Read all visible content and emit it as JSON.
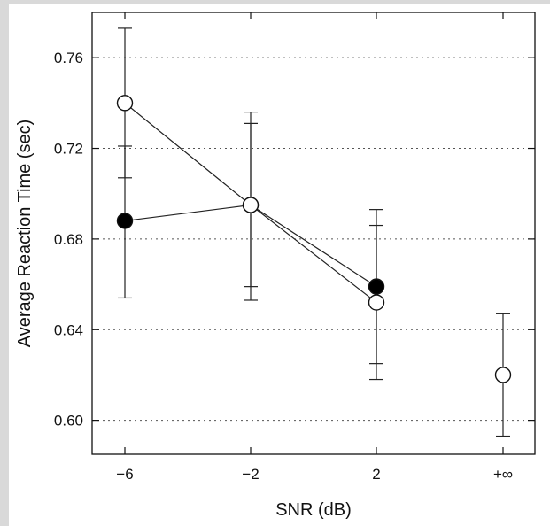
{
  "chart_data": {
    "type": "line",
    "title": "",
    "xlabel": "SNR (dB)",
    "ylabel": "Average Reaction Time (sec)",
    "categories": [
      "−6",
      "−2",
      "2",
      "+∞"
    ],
    "ylim": [
      0.585,
      0.78
    ],
    "yticks": [
      0.6,
      0.64,
      0.68,
      0.72,
      0.76
    ],
    "ytick_labels": [
      "0.60",
      "0.64",
      "0.68",
      "0.72",
      "0.76"
    ],
    "grid": "horizontal dotted",
    "legend": "none",
    "series": [
      {
        "marker": "filled-circle",
        "color": "#000000",
        "values": [
          0.688,
          0.695,
          0.659,
          null
        ],
        "err_low": [
          0.654,
          0.653,
          0.625,
          null
        ],
        "err_high": [
          0.721,
          0.731,
          0.686,
          null
        ]
      },
      {
        "marker": "open-circle",
        "color": "#ffffff",
        "values": [
          0.74,
          0.695,
          0.652,
          0.62
        ],
        "err_low": [
          0.707,
          0.659,
          0.618,
          0.593
        ],
        "err_high": [
          0.773,
          0.736,
          0.693,
          0.647
        ]
      }
    ]
  }
}
